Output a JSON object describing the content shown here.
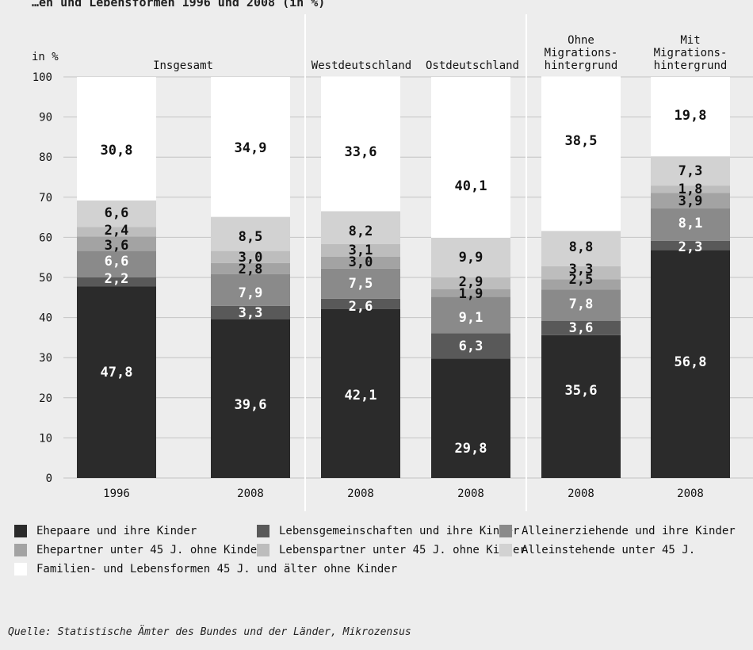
{
  "chart_data": {
    "type": "bar",
    "stacked": true,
    "y_axis_label": "in %",
    "ylim": [
      0,
      100
    ],
    "yticks": [
      0,
      10,
      20,
      30,
      40,
      50,
      60,
      70,
      80,
      90,
      100
    ],
    "grid": true,
    "groups": [
      {
        "label": "Insgesamt",
        "bars": [
          0,
          1
        ]
      },
      {
        "label": "Westdeutschland",
        "bars": [
          2
        ]
      },
      {
        "label": "Ostdeutschland",
        "bars": [
          3
        ]
      },
      {
        "label": "Ohne Migrations-hintergrund",
        "bars": [
          4
        ]
      },
      {
        "label": "Mit Migrations-hintergrund",
        "bars": [
          5
        ]
      }
    ],
    "categories": [
      "1996",
      "2008",
      "2008",
      "2008",
      "2008",
      "2008"
    ],
    "series": [
      {
        "name": "Ehepaare und ihre Kinder",
        "color": "#2b2b2b",
        "label_color": "#ffffff",
        "values": [
          47.8,
          39.6,
          42.1,
          29.8,
          35.6,
          56.8
        ]
      },
      {
        "name": "Lebensgemeinschaften und ihre Kinder",
        "color": "#595959",
        "label_color": "#ffffff",
        "values": [
          2.2,
          3.3,
          2.6,
          6.3,
          3.6,
          2.3
        ]
      },
      {
        "name": "Alleinerziehende und ihre Kinder",
        "color": "#8a8a8a",
        "label_color": "#ffffff",
        "values": [
          6.6,
          7.9,
          7.5,
          9.1,
          7.8,
          8.1
        ]
      },
      {
        "name": "Ehepartner unter 45 J. ohne Kinder",
        "color": "#a3a3a3",
        "label_color": "#111111",
        "values": [
          3.6,
          2.8,
          3.0,
          1.9,
          2.5,
          3.9
        ]
      },
      {
        "name": "Lebenspartner unter 45 J. ohne Kinder",
        "color": "#bdbdbd",
        "label_color": "#111111",
        "values": [
          2.4,
          3.0,
          3.1,
          2.9,
          3.3,
          1.8
        ]
      },
      {
        "name": "Alleinstehende unter 45 J.",
        "color": "#d2d2d2",
        "label_color": "#111111",
        "values": [
          6.6,
          8.5,
          8.2,
          9.9,
          8.8,
          7.3
        ]
      },
      {
        "name": "Familien- und Lebensformen 45 J. und älter ohne Kinder",
        "color": "#ffffff",
        "label_color": "#111111",
        "values": [
          30.8,
          34.9,
          33.6,
          40.1,
          38.5,
          19.8
        ]
      }
    ],
    "value_labels": [
      [
        "47,8",
        "39,6",
        "42,1",
        "29,8",
        "35,6",
        "56,8"
      ],
      [
        "2,2",
        "3,3",
        "2,6",
        "6,3",
        "3,6",
        "2,3"
      ],
      [
        "6,6",
        "7,9",
        "7,5",
        "9,1",
        "7,8",
        "8,1"
      ],
      [
        "3,6",
        "2,8",
        "3,0",
        "1,9",
        "2,5",
        "3,9"
      ],
      [
        "2,4",
        "3,0",
        "3,1",
        "2,9",
        "3,3",
        "1,8"
      ],
      [
        "6,6",
        "8,5",
        "8,2",
        "9,9",
        "8,8",
        "7,3"
      ],
      [
        "30,8",
        "34,9",
        "33,6",
        "40,1",
        "38,5",
        "19,8"
      ]
    ]
  },
  "title_fragment": "…en und Lebensformen 1996 und 2008 (in %)",
  "source": "Quelle: Statistische Ämter des Bundes und der Länder, Mikrozensus"
}
